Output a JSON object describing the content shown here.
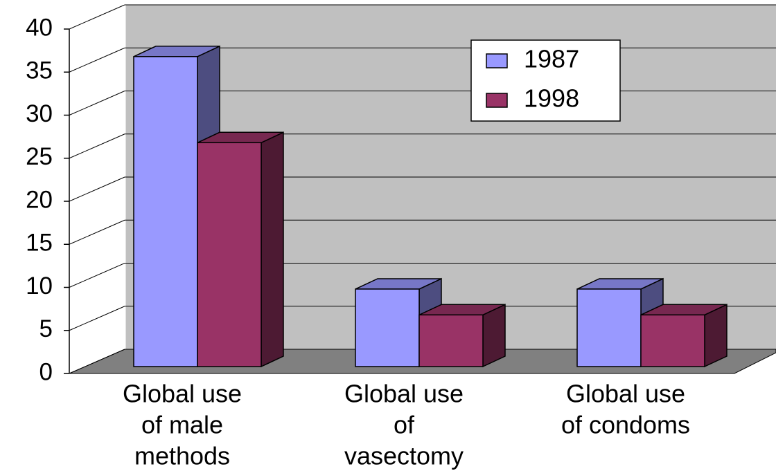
{
  "chart_data": {
    "type": "bar3d",
    "categories": [
      [
        "Global use",
        "of male",
        "methods"
      ],
      [
        "Global use",
        "of",
        "vasectomy"
      ],
      [
        "Global use",
        "of condoms"
      ]
    ],
    "series": [
      {
        "name": "1987",
        "color": "#9999ff",
        "values": [
          36,
          9,
          9
        ]
      },
      {
        "name": "1998",
        "color": "#993366",
        "values": [
          26,
          6,
          6
        ]
      }
    ],
    "ylim": [
      0,
      40
    ],
    "yticks": [
      0,
      5,
      10,
      15,
      20,
      25,
      30,
      35,
      40
    ],
    "grid": true,
    "legend": "top-right"
  }
}
